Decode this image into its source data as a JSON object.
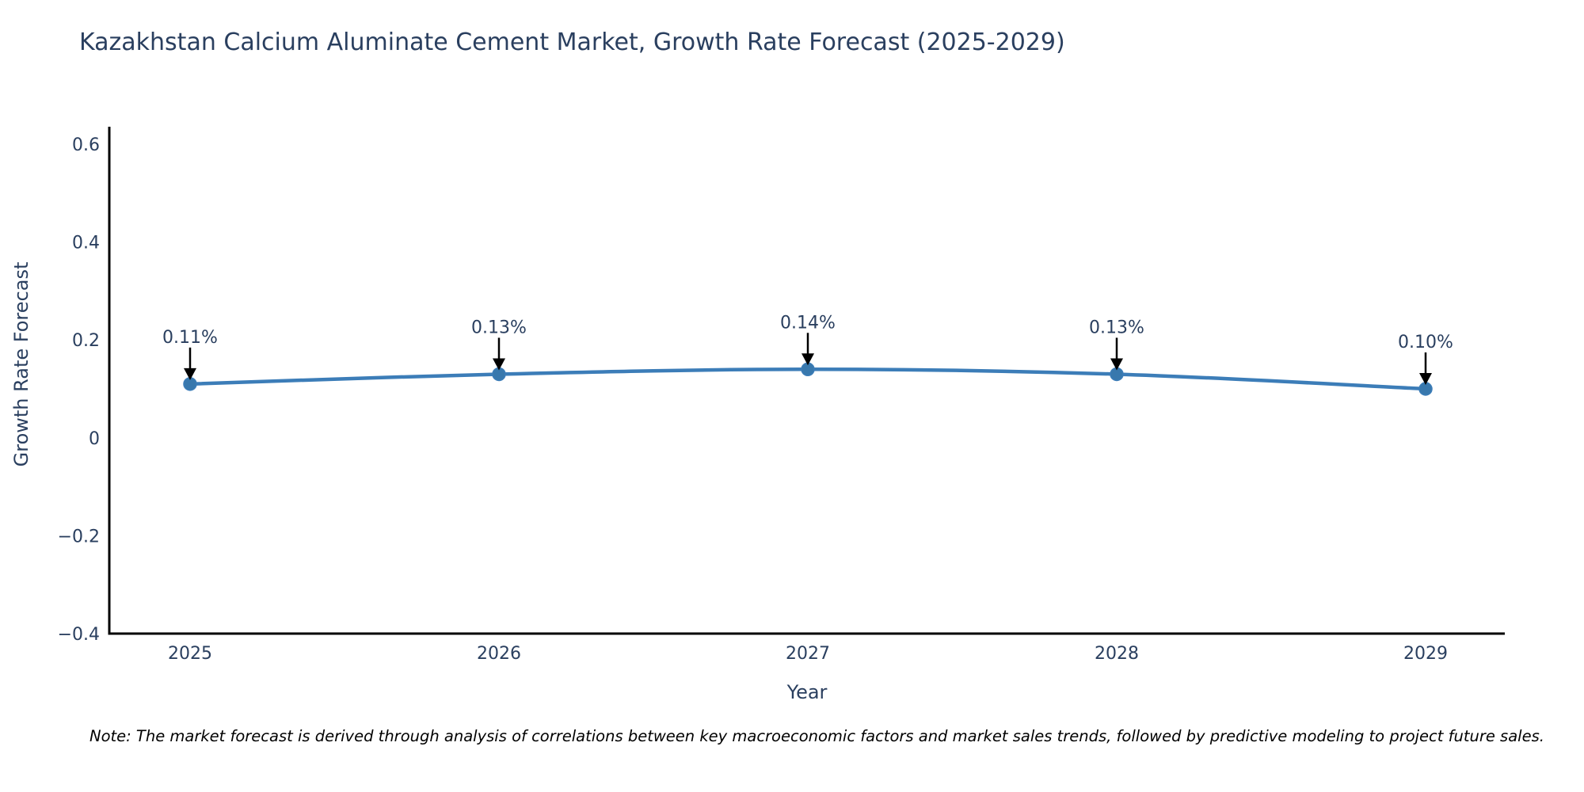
{
  "chart_data": {
    "type": "line",
    "title": "Kazakhstan Calcium Aluminate Cement Market, Growth Rate Forecast (2025-2029)",
    "xlabel": "Year",
    "ylabel": "Growth Rate Forecast",
    "categories": [
      "2025",
      "2026",
      "2027",
      "2028",
      "2029"
    ],
    "series": [
      {
        "name": "Growth Rate Forecast",
        "values": [
          0.11,
          0.13,
          0.14,
          0.13,
          0.1
        ]
      }
    ],
    "point_labels": [
      "0.11%",
      "0.13%",
      "0.14%",
      "0.13%",
      "0.10%"
    ],
    "yticks": [
      0.6,
      0.4,
      0.2,
      0,
      -0.2,
      -0.4
    ],
    "ytick_labels": [
      "0.6",
      "0.4",
      "0.2",
      "0",
      "−0.2",
      "−0.4"
    ],
    "ylim": [
      -0.4,
      0.636
    ],
    "grid": false,
    "legend": "none",
    "colors": {
      "line": "#3c7db8",
      "marker": "#3878ad",
      "axis": "#000000",
      "labels": "#2a3f5f",
      "annotation_arrow": "#000000"
    }
  },
  "note": "Note: The market forecast is derived through analysis of correlations between key macroeconomic factors and market sales trends, followed by predictive modeling to project future sales."
}
